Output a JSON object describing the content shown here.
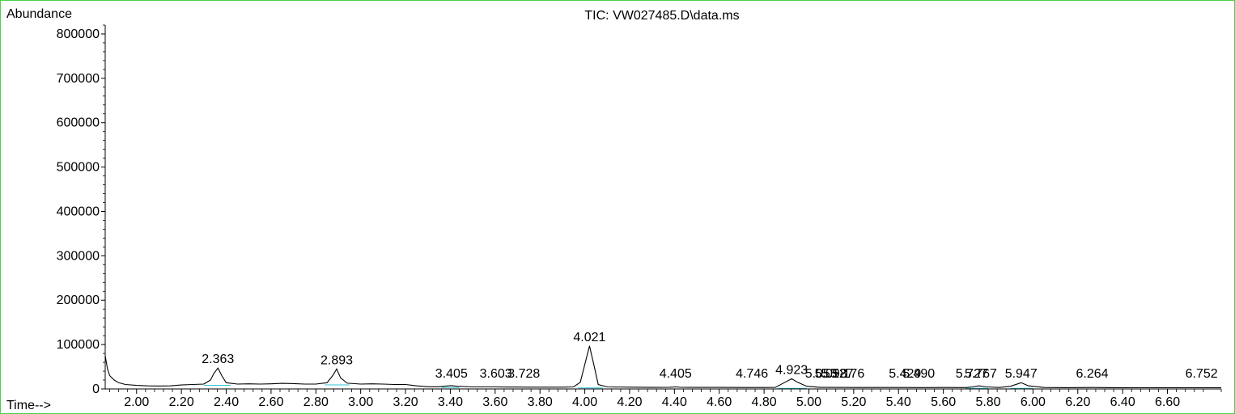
{
  "chart_data": {
    "type": "line",
    "title": "TIC: VW027485.D\\data.ms",
    "ylabel": "Abundance",
    "xlabel": "Time-->",
    "xlim": [
      1.86,
      6.84
    ],
    "ylim": [
      0,
      820000
    ],
    "x_ticks": [
      "2.00",
      "2.20",
      "2.40",
      "2.60",
      "2.80",
      "3.00",
      "3.20",
      "3.40",
      "3.60",
      "3.80",
      "4.00",
      "4.20",
      "4.40",
      "4.60",
      "4.80",
      "5.00",
      "5.20",
      "5.40",
      "5.60",
      "5.80",
      "6.00",
      "6.20",
      "6.40",
      "6.60"
    ],
    "y_ticks": [
      "0",
      "100000",
      "200000",
      "300000",
      "400000",
      "500000",
      "600000",
      "700000",
      "800000"
    ],
    "series": [
      {
        "x": [
          1.86,
          1.87,
          1.88,
          1.9,
          1.92,
          1.95,
          2.0,
          2.05,
          2.1,
          2.15,
          2.2,
          2.25,
          2.3,
          2.33,
          2.345,
          2.363,
          2.38,
          2.4,
          2.45,
          2.5,
          2.55,
          2.6,
          2.65,
          2.7,
          2.75,
          2.8,
          2.85,
          2.875,
          2.893,
          2.91,
          2.94,
          3.0,
          3.05,
          3.1,
          3.15,
          3.2,
          3.25,
          3.3,
          3.35,
          3.38,
          3.405,
          3.43,
          3.5,
          3.55,
          3.6,
          3.65,
          3.7,
          3.75,
          3.8,
          3.85,
          3.9,
          3.95,
          3.98,
          4.0,
          4.021,
          4.04,
          4.06,
          4.1,
          4.2,
          4.3,
          4.38,
          4.405,
          4.43,
          4.5,
          4.6,
          4.7,
          4.746,
          4.8,
          4.85,
          4.89,
          4.923,
          4.95,
          4.99,
          5.05,
          5.1,
          5.2,
          5.3,
          5.4,
          5.5,
          5.6,
          5.7,
          5.73,
          5.76,
          5.79,
          5.85,
          5.9,
          5.947,
          5.98,
          6.05,
          6.15,
          6.264,
          6.35,
          6.45,
          6.55,
          6.65,
          6.752,
          6.84
        ],
        "y": [
          75000,
          45000,
          30000,
          20000,
          14000,
          10000,
          8000,
          7000,
          6500,
          7000,
          9000,
          10000,
          11000,
          20000,
          35000,
          47000,
          30000,
          14000,
          11000,
          11500,
          11000,
          11500,
          12500,
          12000,
          11000,
          11000,
          14000,
          30000,
          45000,
          25000,
          13000,
          11000,
          11500,
          11000,
          10000,
          10000,
          7000,
          5000,
          5000,
          6500,
          7500,
          6000,
          4500,
          4500,
          4500,
          4200,
          4200,
          4100,
          4000,
          4000,
          4000,
          4500,
          15000,
          55000,
          97000,
          55000,
          10000,
          4500,
          4000,
          3500,
          3800,
          4500,
          3700,
          3500,
          3400,
          3300,
          3200,
          3200,
          3500,
          14000,
          23000,
          15000,
          6000,
          3500,
          3500,
          3300,
          3200,
          3200,
          3100,
          3200,
          3100,
          4500,
          7000,
          4500,
          3200,
          6000,
          14000,
          7000,
          3200,
          3000,
          3200,
          2900,
          2800,
          2700,
          2700,
          2800,
          2700
        ]
      }
    ],
    "peak_labels": [
      {
        "x": 2.363,
        "y": 47000,
        "text": "2.363"
      },
      {
        "x": 2.893,
        "y": 45000,
        "text": "2.893"
      },
      {
        "x": 3.405,
        "y": 7500,
        "text": "3.405"
      },
      {
        "x": 3.603,
        "y": 4500,
        "text": "3.603"
      },
      {
        "x": 3.728,
        "y": 4200,
        "text": "3.728"
      },
      {
        "x": 4.021,
        "y": 97000,
        "text": "4.021"
      },
      {
        "x": 4.405,
        "y": 4500,
        "text": "4.405"
      },
      {
        "x": 4.746,
        "y": 3300,
        "text": "4.746"
      },
      {
        "x": 4.923,
        "y": 23000,
        "text": "4.923"
      },
      {
        "x": 5.055,
        "y": 3600,
        "text": "5.055"
      },
      {
        "x": 5.098,
        "y": 3500,
        "text": "5.098"
      },
      {
        "x": 5.127,
        "y": 3500,
        "text": "5.127"
      },
      {
        "x": 5.176,
        "y": 3400,
        "text": "5.176"
      },
      {
        "x": 5.429,
        "y": 3200,
        "text": "5.429"
      },
      {
        "x": 5.49,
        "y": 3200,
        "text": "5.490"
      },
      {
        "x": 5.727,
        "y": 4500,
        "text": "5.727"
      },
      {
        "x": 5.767,
        "y": 5000,
        "text": "5.767"
      },
      {
        "x": 5.947,
        "y": 14000,
        "text": "5.947"
      },
      {
        "x": 6.264,
        "y": 3000,
        "text": "6.264"
      },
      {
        "x": 6.752,
        "y": 2800,
        "text": "6.752"
      }
    ],
    "grid": false,
    "colors": {
      "trace": "#000000",
      "baseline": "#2ec4d6",
      "frame": "#4ad24a",
      "axis": "#000000"
    }
  }
}
